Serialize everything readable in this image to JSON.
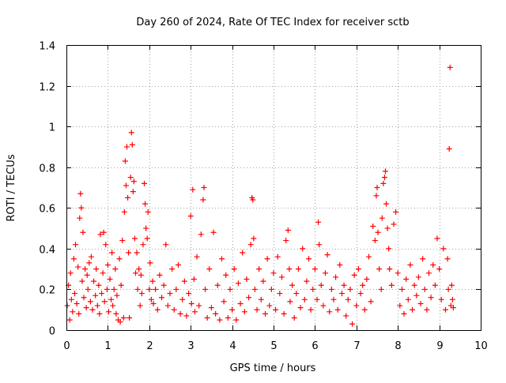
{
  "chart_data": {
    "type": "scatter",
    "title": "Day 260 of 2024, Rate Of TEC Index for receiver sctb",
    "xlabel": "GPS time / hours",
    "ylabel": "ROTI / TECUs",
    "xlim": [
      0,
      10
    ],
    "ylim": [
      0,
      1.4
    ],
    "x_ticks": [
      0,
      1,
      2,
      3,
      4,
      5,
      6,
      7,
      8,
      9,
      10
    ],
    "x_tick_labels": [
      "0",
      "1",
      "2",
      "3",
      "4",
      "5",
      "6",
      "7",
      "8",
      "9",
      "10"
    ],
    "y_ticks": [
      0,
      0.2,
      0.4,
      0.6,
      0.8,
      1.0,
      1.2,
      1.4
    ],
    "y_tick_labels": [
      "0",
      "0.2",
      "0.4",
      "0.6",
      "0.8",
      "1",
      "1.2",
      "1.4"
    ],
    "grid": true,
    "marker": "+",
    "series": [
      {
        "name": "ROTI",
        "color": "#ff0000",
        "points": [
          [
            0.02,
            0.12
          ],
          [
            0.05,
            0.22
          ],
          [
            0.08,
            0.05
          ],
          [
            0.1,
            0.28
          ],
          [
            0.12,
            0.15
          ],
          [
            0.15,
            0.09
          ],
          [
            0.18,
            0.35
          ],
          [
            0.2,
            0.18
          ],
          [
            0.22,
            0.42
          ],
          [
            0.25,
            0.13
          ],
          [
            0.28,
            0.31
          ],
          [
            0.3,
            0.08
          ],
          [
            0.32,
            0.55
          ],
          [
            0.34,
            0.67
          ],
          [
            0.36,
            0.6
          ],
          [
            0.38,
            0.24
          ],
          [
            0.4,
            0.48
          ],
          [
            0.42,
            0.16
          ],
          [
            0.45,
            0.3
          ],
          [
            0.48,
            0.11
          ],
          [
            0.5,
            0.27
          ],
          [
            0.52,
            0.2
          ],
          [
            0.55,
            0.33
          ],
          [
            0.58,
            0.14
          ],
          [
            0.6,
            0.36
          ],
          [
            0.63,
            0.1
          ],
          [
            0.66,
            0.24
          ],
          [
            0.7,
            0.17
          ],
          [
            0.72,
            0.3
          ],
          [
            0.75,
            0.12
          ],
          [
            0.78,
            0.22
          ],
          [
            0.8,
            0.08
          ],
          [
            0.82,
            0.47
          ],
          [
            0.85,
            0.18
          ],
          [
            0.88,
            0.28
          ],
          [
            0.9,
            0.48
          ],
          [
            0.92,
            0.14
          ],
          [
            0.95,
            0.42
          ],
          [
            0.98,
            0.2
          ],
          [
            1.0,
            0.32
          ],
          [
            1.02,
            0.09
          ],
          [
            1.05,
            0.25
          ],
          [
            1.08,
            0.15
          ],
          [
            1.1,
            0.38
          ],
          [
            1.12,
            0.12
          ],
          [
            1.15,
            0.2
          ],
          [
            1.18,
            0.3
          ],
          [
            1.2,
            0.08
          ],
          [
            1.22,
            0.17
          ],
          [
            1.25,
            0.05
          ],
          [
            1.28,
            0.35
          ],
          [
            1.3,
            0.04
          ],
          [
            1.32,
            0.22
          ],
          [
            1.35,
            0.44
          ],
          [
            1.38,
            0.06
          ],
          [
            1.4,
            0.58
          ],
          [
            1.42,
            0.83
          ],
          [
            1.44,
            0.71
          ],
          [
            1.46,
            0.9
          ],
          [
            1.48,
            0.65
          ],
          [
            1.5,
            0.38
          ],
          [
            1.52,
            0.06
          ],
          [
            1.55,
            0.75
          ],
          [
            1.57,
            0.97
          ],
          [
            1.59,
            0.91
          ],
          [
            1.61,
            0.68
          ],
          [
            1.63,
            0.73
          ],
          [
            1.65,
            0.45
          ],
          [
            1.67,
            0.28
          ],
          [
            1.7,
            0.38
          ],
          [
            1.72,
            0.2
          ],
          [
            1.75,
            0.3
          ],
          [
            1.78,
            0.12
          ],
          [
            1.8,
            0.27
          ],
          [
            1.82,
            0.18
          ],
          [
            1.85,
            0.42
          ],
          [
            1.88,
            0.72
          ],
          [
            1.9,
            0.62
          ],
          [
            1.92,
            0.5
          ],
          [
            1.95,
            0.45
          ],
          [
            1.97,
            0.58
          ],
          [
            2.0,
            0.2
          ],
          [
            2.02,
            0.33
          ],
          [
            2.05,
            0.15
          ],
          [
            2.08,
            0.24
          ],
          [
            2.1,
            0.13
          ],
          [
            2.15,
            0.2
          ],
          [
            2.2,
            0.1
          ],
          [
            2.25,
            0.27
          ],
          [
            2.3,
            0.16
          ],
          [
            2.35,
            0.22
          ],
          [
            2.4,
            0.42
          ],
          [
            2.45,
            0.12
          ],
          [
            2.5,
            0.18
          ],
          [
            2.55,
            0.3
          ],
          [
            2.6,
            0.1
          ],
          [
            2.65,
            0.2
          ],
          [
            2.7,
            0.32
          ],
          [
            2.75,
            0.08
          ],
          [
            2.8,
            0.15
          ],
          [
            2.85,
            0.24
          ],
          [
            2.9,
            0.07
          ],
          [
            2.95,
            0.18
          ],
          [
            3.0,
            0.56
          ],
          [
            3.02,
            0.13
          ],
          [
            3.05,
            0.69
          ],
          [
            3.08,
            0.25
          ],
          [
            3.1,
            0.09
          ],
          [
            3.15,
            0.36
          ],
          [
            3.2,
            0.12
          ],
          [
            3.25,
            0.47
          ],
          [
            3.3,
            0.64
          ],
          [
            3.32,
            0.7
          ],
          [
            3.35,
            0.2
          ],
          [
            3.4,
            0.06
          ],
          [
            3.45,
            0.3
          ],
          [
            3.5,
            0.11
          ],
          [
            3.55,
            0.48
          ],
          [
            3.6,
            0.08
          ],
          [
            3.65,
            0.22
          ],
          [
            3.7,
            0.05
          ],
          [
            3.75,
            0.35
          ],
          [
            3.8,
            0.14
          ],
          [
            3.85,
            0.27
          ],
          [
            3.9,
            0.06
          ],
          [
            3.95,
            0.2
          ],
          [
            4.0,
            0.1
          ],
          [
            4.05,
            0.3
          ],
          [
            4.1,
            0.05
          ],
          [
            4.15,
            0.23
          ],
          [
            4.2,
            0.13
          ],
          [
            4.25,
            0.38
          ],
          [
            4.3,
            0.09
          ],
          [
            4.35,
            0.25
          ],
          [
            4.4,
            0.16
          ],
          [
            4.45,
            0.42
          ],
          [
            4.48,
            0.65
          ],
          [
            4.5,
            0.64
          ],
          [
            4.52,
            0.45
          ],
          [
            4.55,
            0.2
          ],
          [
            4.6,
            0.1
          ],
          [
            4.65,
            0.3
          ],
          [
            4.7,
            0.15
          ],
          [
            4.75,
            0.24
          ],
          [
            4.8,
            0.08
          ],
          [
            4.85,
            0.35
          ],
          [
            4.9,
            0.12
          ],
          [
            4.95,
            0.2
          ],
          [
            5.0,
            0.28
          ],
          [
            5.05,
            0.1
          ],
          [
            5.1,
            0.36
          ],
          [
            5.15,
            0.18
          ],
          [
            5.2,
            0.26
          ],
          [
            5.25,
            0.08
          ],
          [
            5.3,
            0.44
          ],
          [
            5.35,
            0.49
          ],
          [
            5.38,
            0.3
          ],
          [
            5.4,
            0.14
          ],
          [
            5.45,
            0.22
          ],
          [
            5.5,
            0.06
          ],
          [
            5.55,
            0.18
          ],
          [
            5.6,
            0.3
          ],
          [
            5.65,
            0.11
          ],
          [
            5.7,
            0.4
          ],
          [
            5.75,
            0.15
          ],
          [
            5.8,
            0.24
          ],
          [
            5.85,
            0.35
          ],
          [
            5.9,
            0.1
          ],
          [
            5.95,
            0.2
          ],
          [
            6.0,
            0.3
          ],
          [
            6.05,
            0.15
          ],
          [
            6.08,
            0.53
          ],
          [
            6.1,
            0.42
          ],
          [
            6.15,
            0.22
          ],
          [
            6.2,
            0.12
          ],
          [
            6.25,
            0.28
          ],
          [
            6.3,
            0.37
          ],
          [
            6.35,
            0.09
          ],
          [
            6.4,
            0.2
          ],
          [
            6.45,
            0.15
          ],
          [
            6.5,
            0.26
          ],
          [
            6.55,
            0.1
          ],
          [
            6.6,
            0.32
          ],
          [
            6.65,
            0.18
          ],
          [
            6.7,
            0.22
          ],
          [
            6.75,
            0.07
          ],
          [
            6.8,
            0.15
          ],
          [
            6.85,
            0.2
          ],
          [
            6.9,
            0.03
          ],
          [
            6.95,
            0.27
          ],
          [
            7.0,
            0.12
          ],
          [
            7.05,
            0.3
          ],
          [
            7.1,
            0.18
          ],
          [
            7.15,
            0.22
          ],
          [
            7.2,
            0.1
          ],
          [
            7.25,
            0.25
          ],
          [
            7.3,
            0.36
          ],
          [
            7.35,
            0.14
          ],
          [
            7.4,
            0.51
          ],
          [
            7.45,
            0.44
          ],
          [
            7.48,
            0.66
          ],
          [
            7.5,
            0.7
          ],
          [
            7.52,
            0.48
          ],
          [
            7.55,
            0.3
          ],
          [
            7.6,
            0.2
          ],
          [
            7.62,
            0.55
          ],
          [
            7.65,
            0.72
          ],
          [
            7.68,
            0.75
          ],
          [
            7.7,
            0.78
          ],
          [
            7.72,
            0.62
          ],
          [
            7.75,
            0.5
          ],
          [
            7.78,
            0.4
          ],
          [
            7.8,
            0.3
          ],
          [
            7.85,
            0.22
          ],
          [
            7.9,
            0.52
          ],
          [
            7.95,
            0.58
          ],
          [
            8.0,
            0.28
          ],
          [
            8.05,
            0.12
          ],
          [
            8.1,
            0.2
          ],
          [
            8.15,
            0.08
          ],
          [
            8.2,
            0.25
          ],
          [
            8.25,
            0.15
          ],
          [
            8.3,
            0.32
          ],
          [
            8.35,
            0.1
          ],
          [
            8.4,
            0.22
          ],
          [
            8.45,
            0.17
          ],
          [
            8.5,
            0.26
          ],
          [
            8.55,
            0.13
          ],
          [
            8.6,
            0.35
          ],
          [
            8.65,
            0.2
          ],
          [
            8.7,
            0.1
          ],
          [
            8.75,
            0.28
          ],
          [
            8.8,
            0.16
          ],
          [
            8.85,
            0.32
          ],
          [
            8.9,
            0.22
          ],
          [
            8.95,
            0.45
          ],
          [
            9.0,
            0.3
          ],
          [
            9.05,
            0.15
          ],
          [
            9.1,
            0.4
          ],
          [
            9.15,
            0.1
          ],
          [
            9.2,
            0.35
          ],
          [
            9.22,
            0.2
          ],
          [
            9.24,
            0.89
          ],
          [
            9.26,
            1.29
          ],
          [
            9.28,
            0.12
          ],
          [
            9.3,
            0.22
          ],
          [
            9.32,
            0.15
          ],
          [
            9.34,
            0.11
          ]
        ]
      }
    ]
  }
}
